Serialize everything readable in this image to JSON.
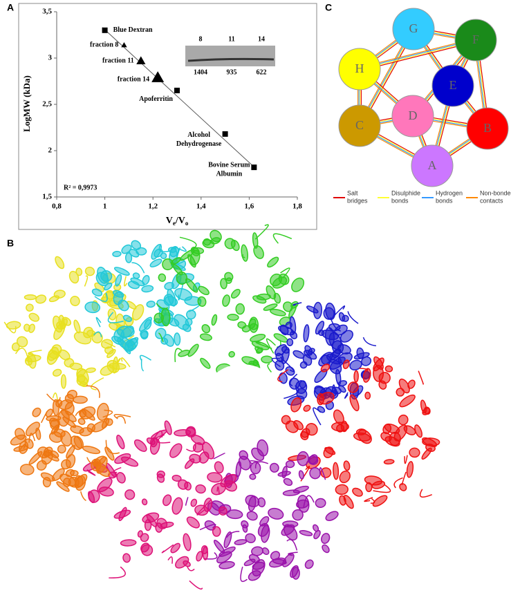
{
  "panel_labels": [
    "A",
    "B",
    "C"
  ],
  "chart_data": {
    "type": "scatter",
    "xlabel_parts": [
      "V",
      "e",
      "/V",
      "o"
    ],
    "ylabel": "LogMW (kDa)",
    "xlim": [
      0.8,
      1.8
    ],
    "xticks": [
      {
        "value": 0.8,
        "label": "0,8"
      },
      1,
      {
        "value": 1.2,
        "label": "1,2"
      },
      {
        "value": 1.4,
        "label": "1,4"
      },
      {
        "value": 1.6,
        "label": "1,6"
      },
      {
        "value": 1.8,
        "label": "1,8"
      }
    ],
    "ylim": [
      1.5,
      3.5
    ],
    "yticks": [
      {
        "value": 1.5,
        "label": "1,5"
      },
      2,
      {
        "value": 2.5,
        "label": "2,5"
      },
      3,
      {
        "value": 3.5,
        "label": "3,5"
      }
    ],
    "series": [
      {
        "marker": "square",
        "color": "#000000",
        "x": [
          1.0,
          1.3,
          1.5,
          1.62
        ],
        "values": [
          3.3,
          2.65,
          2.18,
          1.82
        ],
        "labels": [
          [
            "Blue Dextran"
          ],
          [
            "Apoferritin"
          ],
          [
            "Alcohol",
            "Dehydrogenase"
          ],
          [
            "Bovine  Serum",
            "Albumin"
          ]
        ]
      },
      {
        "marker": "triangle",
        "color": "#000000",
        "x": [
          1.08,
          1.15,
          1.22
        ],
        "values": [
          3.14,
          2.97,
          2.79
        ],
        "marker_sizes": [
          7,
          11,
          15
        ],
        "labels": [
          [
            "fraction  8"
          ],
          [
            "fraction  11"
          ],
          [
            "fraction  14"
          ]
        ]
      }
    ],
    "trendline": {
      "x": [
        0.99,
        1.63
      ],
      "values": [
        3.33,
        1.8
      ],
      "color": "#555555"
    },
    "annotation": "R² = 0,9973",
    "inset": {
      "top_labels": [
        8,
        11,
        14
      ],
      "bottom_labels": [
        1404,
        935,
        622
      ]
    }
  },
  "diagram": {
    "nodes": [
      {
        "label": "G",
        "color": "#33ccff"
      },
      {
        "label": "F",
        "color": "#1a8a1a"
      },
      {
        "label": "H",
        "color": "#ffff00"
      },
      {
        "label": "E",
        "color": "#0000cc"
      },
      {
        "label": "D",
        "color": "#ff77bb"
      },
      {
        "label": "C",
        "color": "#cc9900"
      },
      {
        "label": "B",
        "color": "#ff0000"
      },
      {
        "label": "A",
        "color": "#cc77ff"
      }
    ],
    "legend": [
      {
        "lines": [
          "Salt",
          "bridges"
        ],
        "color": "#e00000"
      },
      {
        "lines": [
          "Disulphide",
          "bonds"
        ],
        "color": "#ffff33"
      },
      {
        "lines": [
          "Hydrogen",
          "bonds"
        ],
        "color": "#3399ff"
      },
      {
        "lines": [
          "Non-bonded",
          "contacts"
        ],
        "color": "#ff8800"
      }
    ]
  }
}
